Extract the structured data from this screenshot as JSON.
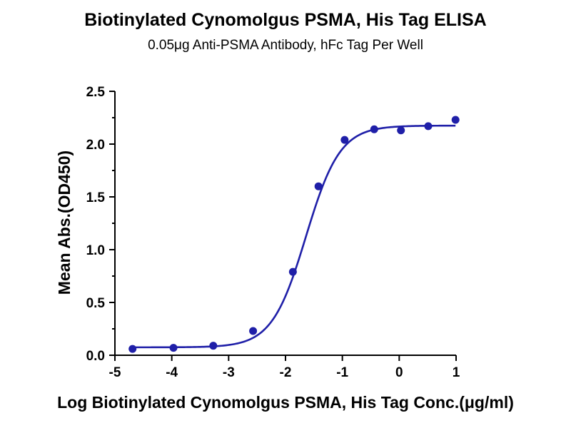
{
  "chart_data": {
    "type": "scatter",
    "title": "Biotinylated Cynomolgus PSMA, His Tag ELISA",
    "subtitle": "0.05μg Anti-PSMA Antibody, hFc Tag Per Well",
    "xlabel": "Log Biotinylated Cynomolgus PSMA, His Tag Conc.(μg/ml)",
    "ylabel": "Mean Abs.(OD450)",
    "xlim": [
      -5,
      1
    ],
    "ylim": [
      0,
      2.5
    ],
    "x_ticks": [
      "-5",
      "-4",
      "-3",
      "-2",
      "-1",
      "0",
      "1"
    ],
    "y_ticks": [
      "0.0",
      "0.5",
      "1.0",
      "1.5",
      "2.0",
      "2.5"
    ],
    "grid": false,
    "colors": {
      "series": "#1f1fa8"
    },
    "series": [
      {
        "x": [
          -4.69,
          -3.97,
          -3.27,
          -2.57,
          -1.87,
          -1.42,
          -0.96,
          -0.44,
          0.03,
          0.51,
          0.99
        ],
        "y": [
          0.06,
          0.07,
          0.09,
          0.23,
          0.79,
          1.6,
          2.04,
          2.14,
          2.13,
          2.17,
          2.23
        ],
        "fit": {
          "model": "4PL",
          "bottom": 0.075,
          "top": 2.175,
          "logEC50": -1.64,
          "hill": 1.45
        }
      }
    ]
  }
}
